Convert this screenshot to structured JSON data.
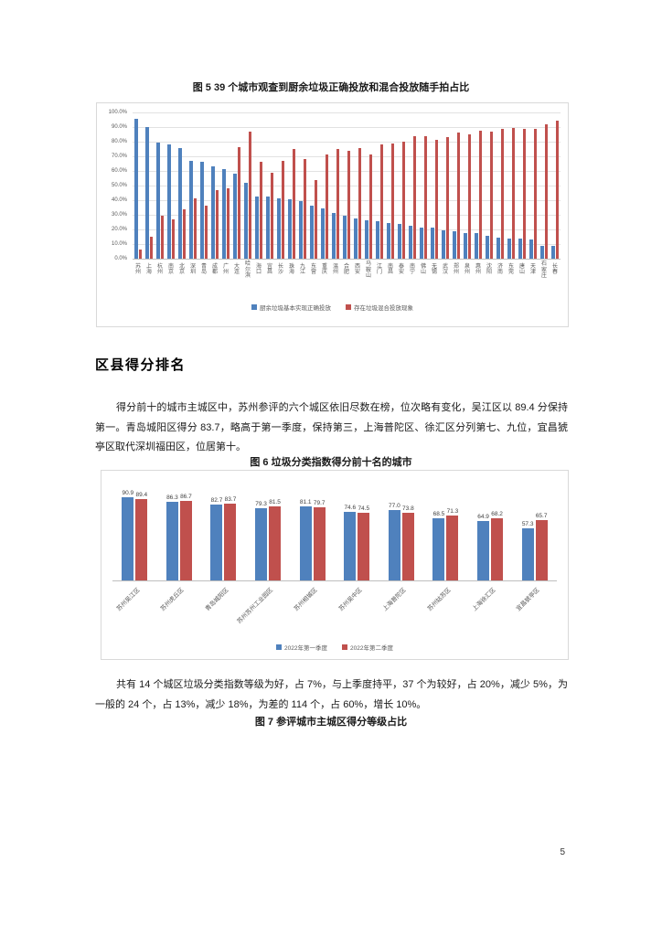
{
  "page": {
    "number": "5"
  },
  "figure5": {
    "caption": "图 5 39 个城市观查到厨余垃圾正确投放和混合投放随手拍占比"
  },
  "section": {
    "heading": "区县得分排名",
    "paragraph1": "得分前十的城市主城区中，苏州参评的六个城区依旧尽数在榜，位次略有变化，吴江区以 89.4 分保持第一。青岛城阳区得分 83.7，略高于第一季度，保持第三，上海普陀区、徐汇区分列第七、九位，宜昌猇亭区取代深圳福田区，位居第十。",
    "paragraph2": "共有 14 个城区垃圾分类指数等级为好，占 7%，与上季度持平，37 个为较好，占 20%，减少 5%，为一般的 24 个，占 13%，减少 18%，为差的 114 个，占 60%，增长 10%。"
  },
  "figure6": {
    "caption": "图 6 垃圾分类指数得分前十名的城市"
  },
  "figure7": {
    "caption": "图 7 参评城市主城区得分等级占比"
  },
  "colors": {
    "series_blue": "#4f81bd",
    "series_red": "#c0504d",
    "grid": "#e2e2e2"
  },
  "chart_data": [
    {
      "type": "bar",
      "title": "39个城市观查到厨余垃圾正确投放和混合投放随手拍占比",
      "categories": [
        "苏州",
        "上海",
        "杭州",
        "南京",
        "北京",
        "深圳",
        "青岛",
        "成都",
        "广州",
        "大连",
        "哈尔滨",
        "海口",
        "宜昌",
        "长沙",
        "珠海",
        "九江",
        "东营",
        "重庆",
        "温州",
        "合肥",
        "西安",
        "马鞍山",
        "江门",
        "南昌",
        "泰安",
        "南宁",
        "佛山",
        "无锡",
        "武汉",
        "郑州",
        "泉州",
        "惠州",
        "沈阳",
        "济南",
        "东莞",
        "唐山",
        "天津",
        "石家庄",
        "长春"
      ],
      "series": [
        {
          "name": "厨余垃圾基本实现正确投放",
          "color": "#4f81bd",
          "values": [
            95.5,
            90,
            79.5,
            78,
            75.5,
            67,
            66,
            63,
            61,
            58,
            52,
            42.5,
            42.5,
            41,
            40.5,
            39.5,
            36,
            34.5,
            31.5,
            29.5,
            27.5,
            26.5,
            25.5,
            24.5,
            24,
            22.5,
            21,
            21.5,
            19.5,
            18.5,
            17.5,
            17.5,
            15.5,
            14.5,
            13.5,
            13.5,
            13,
            9,
            9
          ]
        },
        {
          "name": "存在垃圾混合投放现象",
          "color": "#c0504d",
          "values": [
            6,
            15,
            29.5,
            27,
            34,
            41,
            36,
            47,
            48,
            76.5,
            87,
            66,
            59,
            67,
            75,
            68,
            54,
            71.5,
            75,
            73.5,
            75.5,
            71,
            78,
            79,
            80,
            84,
            83.5,
            81.5,
            83,
            86,
            85,
            87.5,
            87,
            89,
            89.5,
            88.5,
            88.5,
            92,
            94.5
          ]
        }
      ],
      "ylim": [
        0,
        100
      ],
      "yticks": [
        "100.0%",
        "90.0%",
        "80.0%",
        "70.0%",
        "60.0%",
        "50.0%",
        "40.0%",
        "30.0%",
        "20.0%",
        "10.0%",
        "0.0%"
      ],
      "grid": true,
      "legend_position": "bottom",
      "data_labels": false
    },
    {
      "type": "bar",
      "title": "垃圾分类指数得分前十名的城市",
      "categories": [
        "苏州吴江区",
        "苏州虎丘区",
        "青岛城阳区",
        "苏州苏州工业园区",
        "苏州相城区",
        "苏州吴中区",
        "上海普陀区",
        "苏州姑苏区",
        "上海徐汇区",
        "宜昌猇亭区"
      ],
      "series": [
        {
          "name": "2022年第一季度",
          "color": "#4f81bd",
          "values": [
            90.9,
            86.3,
            82.7,
            79.3,
            81.1,
            74.6,
            77.0,
            68.5,
            64.9,
            57.3
          ]
        },
        {
          "name": "2022年第二季度",
          "color": "#c0504d",
          "values": [
            89.4,
            86.7,
            83.7,
            81.5,
            79.7,
            74.5,
            73.8,
            71.3,
            68.2,
            65.7
          ]
        }
      ],
      "ylim": [
        0,
        100
      ],
      "grid": false,
      "legend_position": "bottom",
      "data_labels": true
    }
  ]
}
